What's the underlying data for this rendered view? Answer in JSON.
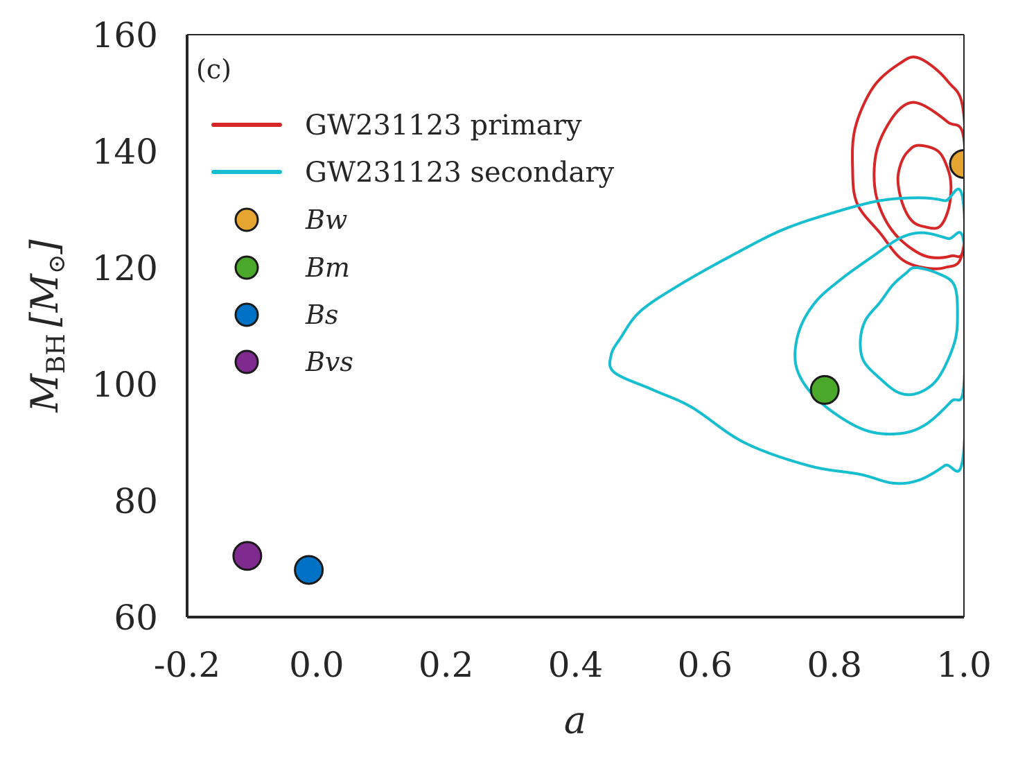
{
  "chart_data": {
    "type": "scatter",
    "panel_label": "(c)",
    "xlabel": "a",
    "ylabel": {
      "main": "M",
      "sub": "BH",
      "unit": "[M",
      "unit_sub": "⊙",
      "unit_close": "]"
    },
    "xlim": [
      -0.2,
      1.0
    ],
    "ylim": [
      60,
      160
    ],
    "xticks": [
      "-0.2",
      "0.0",
      "0.2",
      "0.4",
      "0.6",
      "0.8",
      "1.0"
    ],
    "xtick_values": [
      -0.2,
      0.0,
      0.2,
      0.4,
      0.6,
      0.8,
      1.0
    ],
    "yticks": [
      "60",
      "80",
      "100",
      "120",
      "140",
      "160"
    ],
    "ytick_values": [
      60,
      80,
      100,
      120,
      140,
      160
    ],
    "contours": [
      {
        "name": "GW231123 primary",
        "color": "#d62728",
        "levels": [
          [
            [
              0.93,
              156
            ],
            [
              0.975,
              152
            ],
            [
              1.0,
              146
            ],
            [
              1.0,
              124
            ],
            [
              0.97,
              120
            ],
            [
              0.91,
              121
            ],
            [
              0.87,
              126
            ],
            [
              0.835,
              131
            ],
            [
              0.828,
              137
            ],
            [
              0.832,
              144
            ],
            [
              0.86,
              151
            ],
            [
              0.9,
              155
            ]
          ],
          [
            [
              0.935,
              148
            ],
            [
              0.975,
              145
            ],
            [
              1.0,
              142
            ],
            [
              1.0,
              124
            ],
            [
              0.98,
              122
            ],
            [
              0.94,
              122
            ],
            [
              0.9,
              125
            ],
            [
              0.875,
              129
            ],
            [
              0.862,
              134
            ],
            [
              0.865,
              140
            ],
            [
              0.885,
              145
            ],
            [
              0.91,
              148
            ]
          ],
          [
            [
              0.93,
              141
            ],
            [
              0.96,
              140
            ],
            [
              0.975,
              137
            ],
            [
              0.98,
              134
            ],
            [
              0.976,
              130
            ],
            [
              0.962,
              127
            ],
            [
              0.94,
              127
            ],
            [
              0.92,
              128
            ],
            [
              0.905,
              131
            ],
            [
              0.898,
              135
            ],
            [
              0.903,
              138
            ],
            [
              0.914,
              140
            ]
          ]
        ]
      },
      {
        "name": "GW231123 secondary",
        "color": "#17becf",
        "levels": [
          [
            [
              0.93,
              132
            ],
            [
              0.97,
              131.5
            ],
            [
              1.0,
              130
            ],
            [
              1.0,
              89
            ],
            [
              0.97,
              86
            ],
            [
              0.93,
              83.5
            ],
            [
              0.89,
              83
            ],
            [
              0.84,
              84.5
            ],
            [
              0.76,
              86
            ],
            [
              0.66,
              90
            ],
            [
              0.58,
              96
            ],
            [
              0.52,
              99
            ],
            [
              0.46,
              102
            ],
            [
              0.455,
              105
            ],
            [
              0.47,
              108
            ],
            [
              0.5,
              112.5
            ],
            [
              0.56,
              117
            ],
            [
              0.64,
              122
            ],
            [
              0.72,
              126.5
            ],
            [
              0.8,
              129.5
            ],
            [
              0.87,
              131.5
            ]
          ],
          [
            [
              0.935,
              126
            ],
            [
              0.975,
              125
            ],
            [
              1.0,
              124
            ],
            [
              1.0,
              100
            ],
            [
              0.98,
              97
            ],
            [
              0.94,
              93
            ],
            [
              0.9,
              91.5
            ],
            [
              0.85,
              92
            ],
            [
              0.8,
              95
            ],
            [
              0.76,
              99
            ],
            [
              0.74,
              103.5
            ],
            [
              0.745,
              109
            ],
            [
              0.77,
              114
            ],
            [
              0.81,
              118
            ],
            [
              0.86,
              122
            ],
            [
              0.9,
              125
            ]
          ],
          [
            [
              0.925,
              120
            ],
            [
              0.96,
              119
            ],
            [
              0.985,
              117
            ],
            [
              0.99,
              112
            ],
            [
              0.985,
              107
            ],
            [
              0.96,
              101
            ],
            [
              0.93,
              98.5
            ],
            [
              0.9,
              98.5
            ],
            [
              0.87,
              101
            ],
            [
              0.845,
              104
            ],
            [
              0.84,
              107.5
            ],
            [
              0.848,
              111
            ],
            [
              0.87,
              114
            ],
            [
              0.89,
              117
            ],
            [
              0.91,
              119
            ]
          ]
        ]
      }
    ],
    "series": [
      {
        "name": "Bw",
        "x": 1.0,
        "y": 137.8,
        "color": "#e6a430"
      },
      {
        "name": "Bm",
        "x": 0.785,
        "y": 99.0,
        "color": "#4aa82a"
      },
      {
        "name": "Bs",
        "x": -0.012,
        "y": 68.1,
        "color": "#0072c6"
      },
      {
        "name": "Bvs",
        "x": -0.107,
        "y": 70.5,
        "color": "#7f2a8f"
      }
    ],
    "legend": {
      "position": "upper-left",
      "lines": [
        {
          "label": "GW231123 primary",
          "color": "#d62728"
        },
        {
          "label": "GW231123 secondary",
          "color": "#17becf"
        }
      ],
      "markers": [
        {
          "label": "Bw",
          "color": "#e6a430"
        },
        {
          "label": "Bm",
          "color": "#4aa82a"
        },
        {
          "label": "Bs",
          "color": "#0072c6"
        },
        {
          "label": "Bvs",
          "color": "#7f2a8f"
        }
      ]
    }
  }
}
